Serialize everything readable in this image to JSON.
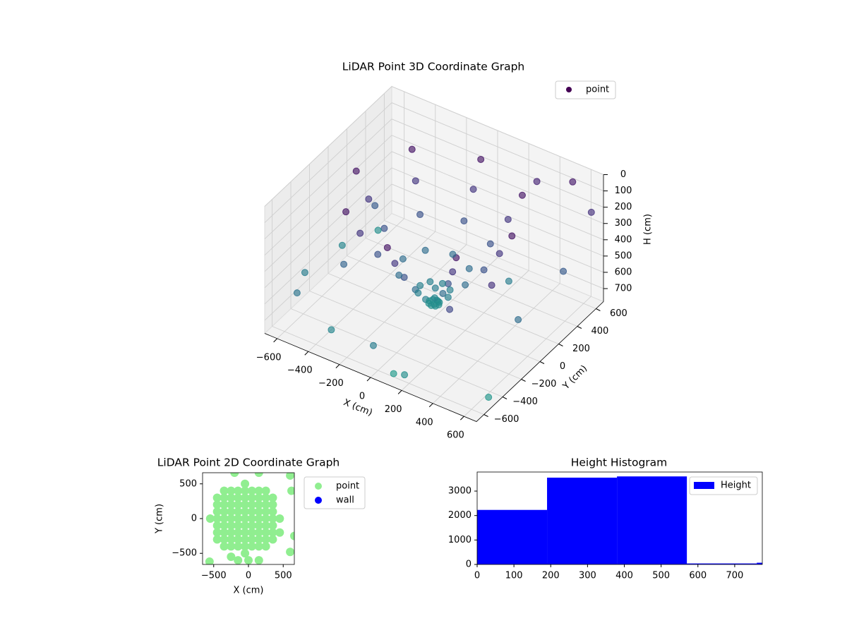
{
  "chart_data": [
    {
      "type": "scatter3d",
      "title": "LiDAR Point 3D Coordinate Graph",
      "xlabel": "X (cm)",
      "ylabel": "Y (cm)",
      "zlabel": "H (cm)",
      "xlim": [
        -680,
        680
      ],
      "ylim": [
        -680,
        680
      ],
      "zlim": [
        0,
        780
      ],
      "z_inverted": true,
      "colormap": "viridis",
      "legend": "upper right",
      "xticks": [
        {
          "value": -600,
          "label": "−600"
        },
        {
          "value": -400,
          "label": "−400"
        },
        {
          "value": -200,
          "label": "−200"
        },
        0,
        200,
        400,
        600
      ],
      "yticks": [
        {
          "value": -600,
          "label": "−600"
        },
        {
          "value": -400,
          "label": "−400"
        },
        {
          "value": -200,
          "label": "−200"
        },
        0,
        200,
        400,
        600
      ],
      "zticks": [
        0,
        100,
        200,
        300,
        400,
        500,
        600,
        700
      ],
      "series": [
        {
          "name": "point",
          "x": [
            500,
            354,
            0,
            -354,
            -500,
            -354,
            0,
            354,
            420,
            297,
            0,
            -297,
            -420,
            -297,
            0,
            297,
            320,
            226,
            0,
            -226,
            -320,
            -226,
            0,
            226,
            200,
            141,
            0,
            -141,
            -200,
            -141,
            0,
            141,
            90,
            64,
            0,
            -64,
            -90,
            -64,
            0,
            64,
            30,
            21,
            0,
            -21,
            -30,
            -21,
            0,
            21,
            300,
            500,
            650,
            650,
            600,
            -550,
            -650,
            -650,
            -300,
            200,
            100,
            0,
            10,
            5,
            -400,
            -500,
            400,
            550,
            -600,
            0,
            300,
            650
          ],
          "y": [
            0,
            354,
            500,
            354,
            0,
            -354,
            -500,
            -354,
            0,
            297,
            420,
            297,
            0,
            -297,
            -420,
            -297,
            0,
            226,
            320,
            226,
            0,
            -226,
            -320,
            -226,
            0,
            141,
            200,
            141,
            0,
            -141,
            -200,
            -141,
            0,
            64,
            90,
            64,
            0,
            -64,
            -90,
            -64,
            0,
            21,
            30,
            21,
            0,
            -21,
            -30,
            -21,
            600,
            650,
            600,
            300,
            -100,
            -550,
            -300,
            100,
            -600,
            -650,
            -600,
            0,
            -10,
            5,
            -300,
            200,
            -500,
            -300,
            400,
            -650,
            300,
            -500
          ],
          "z": [
            80,
            80,
            80,
            80,
            80,
            80,
            80,
            80,
            220,
            220,
            220,
            220,
            220,
            220,
            220,
            220,
            360,
            360,
            360,
            360,
            360,
            360,
            360,
            360,
            500,
            500,
            500,
            500,
            500,
            500,
            500,
            500,
            620,
            620,
            620,
            620,
            620,
            620,
            620,
            620,
            690,
            690,
            690,
            690,
            690,
            690,
            690,
            690,
            150,
            100,
            200,
            400,
            500,
            550,
            600,
            650,
            650,
            700,
            760,
            700,
            650,
            600,
            450,
            400,
            300,
            200,
            700,
            600,
            600,
            740
          ]
        }
      ]
    },
    {
      "type": "scatter",
      "title": "LiDAR Point 2D Coordinate Graph",
      "xlabel": "X (cm)",
      "ylabel": "Y (cm)",
      "xlim": [
        -660,
        660
      ],
      "ylim": [
        -660,
        660
      ],
      "legend": "outside right",
      "xticks": [
        {
          "value": -500,
          "label": "−500"
        },
        0,
        500
      ],
      "yticks": [
        {
          "value": -500,
          "label": "−500"
        },
        0,
        500
      ],
      "series": [
        {
          "name": "point",
          "color": "#90ee90",
          "x": [
            -550,
            -450,
            -450,
            -450,
            -450,
            -450,
            -450,
            -450,
            -350,
            -350,
            -350,
            -350,
            -350,
            -350,
            -350,
            -350,
            -350,
            -250,
            -250,
            -250,
            -250,
            -250,
            -250,
            -250,
            -250,
            -250,
            -150,
            -150,
            -150,
            -150,
            -150,
            -150,
            -150,
            -150,
            -150,
            -50,
            -50,
            -50,
            -50,
            -50,
            -50,
            -50,
            -50,
            -50,
            -50,
            -50,
            50,
            50,
            50,
            50,
            50,
            50,
            50,
            50,
            50,
            150,
            150,
            150,
            150,
            150,
            150,
            150,
            150,
            150,
            250,
            250,
            250,
            250,
            250,
            250,
            250,
            250,
            250,
            350,
            350,
            350,
            350,
            350,
            350,
            350,
            450,
            600,
            150,
            -200,
            620,
            450,
            660,
            600,
            -150,
            0,
            150,
            -560,
            -250
          ],
          "y": [
            0,
            -300,
            -200,
            -100,
            0,
            100,
            200,
            300,
            -400,
            -300,
            -200,
            -100,
            0,
            100,
            200,
            300,
            400,
            -400,
            -300,
            -200,
            -100,
            0,
            100,
            200,
            300,
            400,
            -400,
            -300,
            -200,
            -100,
            0,
            100,
            200,
            300,
            400,
            -500,
            -400,
            -300,
            -200,
            -100,
            0,
            100,
            200,
            300,
            400,
            500,
            -400,
            -300,
            -200,
            -100,
            0,
            100,
            200,
            300,
            400,
            -400,
            -300,
            -200,
            -100,
            0,
            100,
            200,
            300,
            400,
            -400,
            -300,
            -200,
            -100,
            0,
            100,
            200,
            300,
            400,
            -300,
            -200,
            -100,
            0,
            100,
            200,
            300,
            0,
            620,
            660,
            660,
            400,
            -200,
            -250,
            -480,
            -600,
            -600,
            -600,
            -620,
            -550
          ]
        },
        {
          "name": "wall",
          "color": "#0000ff",
          "x": [],
          "y": []
        }
      ]
    },
    {
      "type": "histogram",
      "title": "Height Histogram",
      "legend": "upper right",
      "bins": [
        0,
        190,
        380,
        570,
        760,
        950
      ],
      "xlim": [
        0,
        775
      ],
      "ylim": [
        0,
        3780
      ],
      "xticks": [
        0,
        100,
        200,
        300,
        400,
        500,
        600,
        700
      ],
      "yticks": [
        0,
        1000,
        2000,
        3000
      ],
      "series": [
        {
          "name": "Height",
          "color": "#0000ff",
          "values": [
            2230,
            3550,
            3600,
            40,
            70
          ]
        }
      ]
    }
  ]
}
